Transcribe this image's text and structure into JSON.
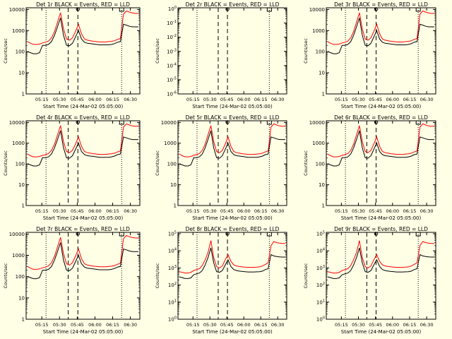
{
  "page": {
    "background": "#ffffe6"
  },
  "colors": {
    "events": "#000000",
    "lld": "#ff0000",
    "axes": "#000000"
  },
  "common": {
    "time_ticks": [
      "05:15",
      "05:30",
      "05:45",
      "06:00",
      "06:15",
      "06:30"
    ],
    "xlabel": "Start Time (24-Mar-02 05:05:00)",
    "ylabel": "Counts/sec",
    "yticks_linear": [
      "1",
      "10",
      "100",
      "1000",
      "10000"
    ]
  },
  "chart_data": [
    {
      "type": "line",
      "title": "Det 1r BLACK = Events, RED = LLD",
      "ylog": true,
      "ylim": [
        1,
        12000
      ],
      "series": [
        {
          "color": "#000000",
          "values": [
            100,
            90,
            80,
            80,
            90,
            200,
            200,
            220,
            300,
            600,
            1500,
            4000,
            600,
            200,
            190,
            250,
            500,
            1000,
            400,
            280,
            250,
            240,
            230,
            220,
            210,
            210,
            210,
            210,
            220,
            240,
            280,
            300,
            2000,
            1800,
            1600,
            1500,
            1500,
            1500
          ]
        },
        {
          "color": "#ff0000",
          "values": [
            300,
            250,
            220,
            220,
            230,
            260,
            280,
            320,
            450,
            900,
            2500,
            7000,
            1200,
            400,
            350,
            450,
            900,
            2000,
            700,
            400,
            350,
            330,
            310,
            300,
            290,
            290,
            290,
            300,
            310,
            330,
            380,
            420,
            6000,
            8500,
            7500,
            6800,
            6500,
            6500
          ]
        }
      ]
    },
    {
      "type": "line",
      "title": "Det 2r BLACK = Events, RED = LLD",
      "ylog": true,
      "ylim": [
        1e-06,
        1.2
      ],
      "yticks": [
        "10-6",
        "10-5",
        "10-4",
        "10-3",
        "10-2",
        "10-1",
        "100"
      ],
      "series": [
        {
          "color": "#000000",
          "values": []
        },
        {
          "color": "#ff0000",
          "values": []
        }
      ]
    },
    {
      "type": "line",
      "title": "Det 3r BLACK = Events, RED = LLD",
      "ylog": true,
      "ylim": [
        1,
        12000
      ],
      "series": [
        {
          "color": "#000000",
          "values": [
            100,
            90,
            80,
            80,
            90,
            200,
            200,
            220,
            300,
            600,
            1500,
            4000,
            600,
            200,
            190,
            250,
            500,
            1000,
            400,
            280,
            250,
            240,
            230,
            220,
            210,
            210,
            210,
            210,
            220,
            240,
            280,
            300,
            2000,
            1800,
            1600,
            1500,
            1500,
            1500
          ]
        },
        {
          "color": "#ff0000",
          "values": [
            300,
            250,
            220,
            220,
            230,
            260,
            280,
            320,
            450,
            900,
            2500,
            7000,
            1200,
            400,
            350,
            450,
            900,
            2000,
            700,
            400,
            350,
            330,
            310,
            300,
            290,
            290,
            290,
            300,
            310,
            330,
            380,
            420,
            6000,
            8500,
            7500,
            6800,
            6500,
            6500
          ]
        }
      ]
    },
    {
      "type": "line",
      "title": "Det 4r BLACK = Events, RED = LLD",
      "ylog": true,
      "ylim": [
        1,
        12000
      ],
      "series": [
        {
          "color": "#000000",
          "values": [
            100,
            90,
            80,
            80,
            90,
            200,
            200,
            220,
            300,
            600,
            1500,
            4000,
            600,
            200,
            190,
            250,
            500,
            1000,
            400,
            280,
            250,
            240,
            230,
            220,
            210,
            210,
            210,
            210,
            220,
            240,
            280,
            300,
            2000,
            1800,
            1600,
            1500,
            1500,
            1500
          ]
        },
        {
          "color": "#ff0000",
          "values": [
            300,
            250,
            220,
            220,
            230,
            260,
            280,
            320,
            450,
            900,
            2500,
            7000,
            1200,
            400,
            350,
            450,
            900,
            2000,
            700,
            400,
            350,
            330,
            310,
            300,
            290,
            290,
            290,
            300,
            310,
            330,
            380,
            420,
            6000,
            8500,
            7500,
            6800,
            6500,
            6500
          ]
        }
      ]
    },
    {
      "type": "line",
      "title": "Det 5r BLACK = Events, RED = LLD",
      "ylog": true,
      "ylim": [
        1,
        12000
      ],
      "series": [
        {
          "color": "#000000",
          "values": [
            100,
            90,
            80,
            80,
            90,
            200,
            200,
            220,
            300,
            600,
            1500,
            4000,
            600,
            200,
            190,
            250,
            500,
            1000,
            400,
            280,
            250,
            240,
            230,
            220,
            210,
            210,
            210,
            210,
            220,
            240,
            280,
            300,
            2000,
            1800,
            1600,
            1500,
            1500,
            1500
          ]
        },
        {
          "color": "#ff0000",
          "values": [
            300,
            250,
            220,
            220,
            230,
            260,
            280,
            320,
            450,
            900,
            2500,
            7000,
            1200,
            400,
            350,
            450,
            900,
            2000,
            700,
            400,
            350,
            330,
            310,
            300,
            290,
            290,
            290,
            300,
            310,
            330,
            380,
            420,
            6000,
            8500,
            7500,
            6800,
            6500,
            6500
          ]
        }
      ]
    },
    {
      "type": "line",
      "title": "Det 6r BLACK = Events, RED = LLD",
      "ylog": true,
      "ylim": [
        1,
        12000
      ],
      "series": [
        {
          "color": "#000000",
          "values": [
            100,
            90,
            80,
            80,
            90,
            200,
            200,
            220,
            300,
            600,
            1500,
            4000,
            600,
            200,
            190,
            250,
            500,
            1000,
            400,
            280,
            250,
            240,
            230,
            220,
            210,
            210,
            210,
            210,
            220,
            240,
            280,
            300,
            2000,
            1800,
            1600,
            1500,
            1500,
            1500
          ]
        },
        {
          "color": "#ff0000",
          "values": [
            300,
            250,
            220,
            220,
            230,
            260,
            280,
            320,
            450,
            900,
            2500,
            7000,
            1200,
            400,
            350,
            450,
            900,
            2000,
            700,
            400,
            350,
            330,
            310,
            300,
            290,
            290,
            290,
            300,
            310,
            330,
            380,
            420,
            6000,
            8500,
            7500,
            6800,
            6500,
            6500
          ]
        }
      ]
    },
    {
      "type": "line",
      "title": "Det 7r BLACK = Events, RED = LLD",
      "ylog": true,
      "ylim": [
        1,
        12000
      ],
      "series": [
        {
          "color": "#000000",
          "values": [
            100,
            90,
            80,
            80,
            90,
            200,
            200,
            220,
            300,
            600,
            1500,
            4000,
            600,
            200,
            190,
            250,
            500,
            1000,
            400,
            280,
            250,
            240,
            230,
            220,
            210,
            210,
            210,
            210,
            220,
            240,
            280,
            300,
            2000,
            1800,
            1600,
            1500,
            1500,
            1500
          ]
        },
        {
          "color": "#ff0000",
          "values": [
            300,
            250,
            220,
            220,
            230,
            260,
            280,
            320,
            450,
            900,
            2500,
            7000,
            1200,
            400,
            350,
            450,
            900,
            2000,
            700,
            400,
            350,
            330,
            310,
            300,
            290,
            290,
            290,
            300,
            310,
            330,
            380,
            420,
            6000,
            8500,
            7500,
            6800,
            6500,
            6500
          ]
        }
      ]
    },
    {
      "type": "line",
      "title": "Det 8r BLACK = Events, RED = LLD",
      "ylog": true,
      "ylim": [
        1,
        120000
      ],
      "yticks": [
        "100",
        "101",
        "102",
        "103",
        "104",
        "105"
      ],
      "series": [
        {
          "color": "#000000",
          "values": [
            300,
            270,
            240,
            240,
            260,
            400,
            450,
            500,
            700,
            1500,
            4000,
            15000,
            2000,
            600,
            550,
            700,
            1500,
            3000,
            1200,
            800,
            700,
            650,
            620,
            600,
            580,
            580,
            580,
            590,
            600,
            650,
            800,
            900,
            6000,
            5000,
            4600,
            4400,
            4300,
            4300
          ]
        },
        {
          "color": "#ff0000",
          "values": [
            600,
            550,
            500,
            500,
            550,
            700,
            800,
            900,
            1400,
            3000,
            8000,
            40000,
            4000,
            1200,
            1000,
            1300,
            3000,
            6000,
            2400,
            1500,
            1300,
            1200,
            1150,
            1100,
            1080,
            1080,
            1080,
            1100,
            1150,
            1300,
            1600,
            2000,
            20000,
            35000,
            30000,
            28000,
            27000,
            27000
          ]
        }
      ]
    },
    {
      "type": "line",
      "title": "Det 9r BLACK = Events, RED = LLD",
      "ylog": true,
      "ylim": [
        1,
        120000
      ],
      "yticks": [
        "100",
        "101",
        "102",
        "103",
        "104",
        "105"
      ],
      "series": [
        {
          "color": "#000000",
          "values": [
            300,
            270,
            240,
            240,
            260,
            400,
            450,
            500,
            700,
            1500,
            4000,
            15000,
            2000,
            600,
            550,
            700,
            1500,
            3000,
            1200,
            800,
            700,
            650,
            620,
            600,
            580,
            580,
            580,
            590,
            600,
            650,
            800,
            900,
            6000,
            5000,
            4600,
            4400,
            4300,
            4300
          ]
        },
        {
          "color": "#ff0000",
          "values": [
            600,
            550,
            500,
            500,
            550,
            700,
            800,
            900,
            1400,
            3000,
            8000,
            40000,
            4000,
            1200,
            1000,
            1300,
            3000,
            6000,
            2400,
            1500,
            1300,
            1200,
            1150,
            1100,
            1080,
            1080,
            1080,
            1100,
            1150,
            1300,
            1600,
            2000,
            20000,
            35000,
            30000,
            28000,
            27000,
            27000
          ]
        }
      ]
    }
  ]
}
